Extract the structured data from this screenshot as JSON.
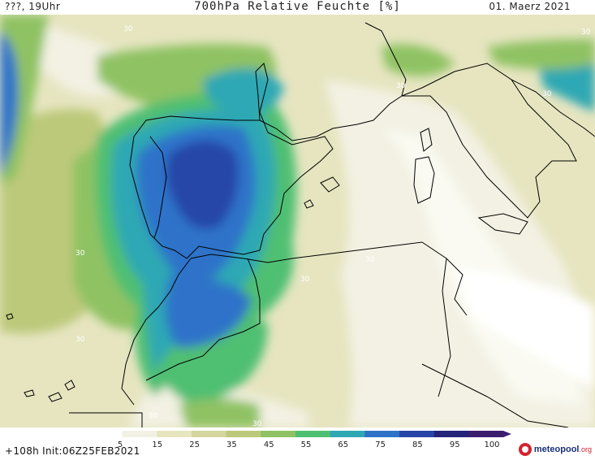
{
  "header": {
    "left": "???, 19Uhr",
    "center": "700hPa Relative Feuchte [%]",
    "right": "01. Maerz 2021"
  },
  "footer": {
    "left": "+108h Init:06Z25FEB2021",
    "logo": "meteopool",
    "logo_suffix": ".org"
  },
  "legend": {
    "ticks": [
      "5",
      "15",
      "25",
      "35",
      "45",
      "55",
      "65",
      "75",
      "85",
      "95",
      "100"
    ],
    "colors": [
      "#ffffff",
      "#f3f1e3",
      "#e6e5c0",
      "#d4d69c",
      "#bcc97a",
      "#8fc264",
      "#4fbf72",
      "#2fa8b4",
      "#2f73c9",
      "#2846a8",
      "#23247a",
      "#3c1e6e"
    ]
  },
  "contour_labels": [
    "30",
    "30",
    "30",
    "30",
    "30",
    "30",
    "30",
    "30",
    "30",
    "30"
  ]
}
